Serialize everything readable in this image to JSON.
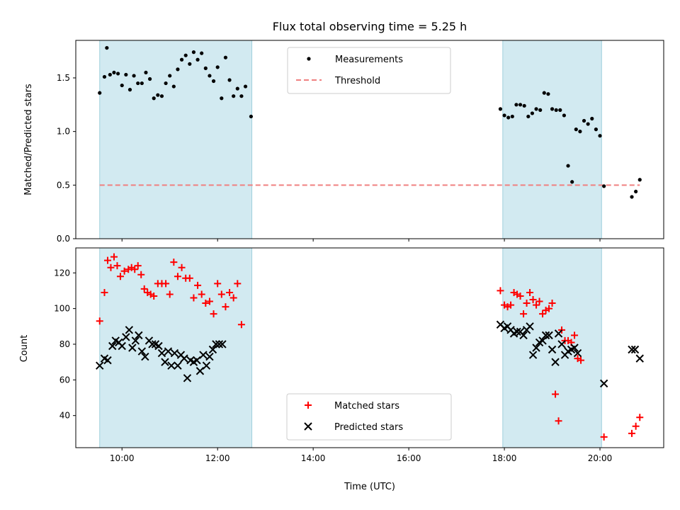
{
  "chart_data": {
    "title": "Flux total observing time = 5.25 h",
    "xlabel": "Time (UTC)",
    "x_ticks": [
      "10:00",
      "12:00",
      "14:00",
      "16:00",
      "18:00",
      "20:00"
    ],
    "x_range": [
      "09:02",
      "21:20"
    ],
    "shaded_intervals": [
      [
        "09:32",
        "12:43"
      ],
      [
        "17:58",
        "20:02"
      ]
    ],
    "shade_color": "#add8e6",
    "panels": [
      {
        "type": "scatter",
        "ylabel": "Matched/Predicted stars",
        "ylim": [
          0,
          1.85
        ],
        "y_ticks": [
          "0.0",
          "0.5",
          "1.0",
          "1.5"
        ],
        "legend_position": "top-center",
        "series": [
          {
            "name": "Measurements",
            "color": "#000000",
            "marker": "dot",
            "points": [
              [
                "09:32",
                1.36
              ],
              [
                "09:38",
                1.51
              ],
              [
                "09:41",
                1.78
              ],
              [
                "09:45",
                1.53
              ],
              [
                "09:50",
                1.55
              ],
              [
                "09:55",
                1.54
              ],
              [
                "10:00",
                1.43
              ],
              [
                "10:05",
                1.53
              ],
              [
                "10:10",
                1.39
              ],
              [
                "10:15",
                1.52
              ],
              [
                "10:20",
                1.45
              ],
              [
                "10:25",
                1.45
              ],
              [
                "10:30",
                1.55
              ],
              [
                "10:35",
                1.49
              ],
              [
                "10:40",
                1.31
              ],
              [
                "10:45",
                1.34
              ],
              [
                "10:50",
                1.33
              ],
              [
                "10:55",
                1.45
              ],
              [
                "11:00",
                1.52
              ],
              [
                "11:05",
                1.42
              ],
              [
                "11:10",
                1.58
              ],
              [
                "11:15",
                1.67
              ],
              [
                "11:20",
                1.71
              ],
              [
                "11:25",
                1.63
              ],
              [
                "11:30",
                1.74
              ],
              [
                "11:35",
                1.67
              ],
              [
                "11:40",
                1.73
              ],
              [
                "11:45",
                1.59
              ],
              [
                "11:50",
                1.52
              ],
              [
                "11:55",
                1.47
              ],
              [
                "12:00",
                1.6
              ],
              [
                "12:05",
                1.31
              ],
              [
                "12:10",
                1.69
              ],
              [
                "12:15",
                1.48
              ],
              [
                "12:20",
                1.33
              ],
              [
                "12:25",
                1.4
              ],
              [
                "12:30",
                1.33
              ],
              [
                "12:35",
                1.42
              ],
              [
                "12:42",
                1.14
              ],
              [
                "17:55",
                1.21
              ],
              [
                "18:00",
                1.15
              ],
              [
                "18:05",
                1.13
              ],
              [
                "18:10",
                1.14
              ],
              [
                "18:15",
                1.25
              ],
              [
                "18:20",
                1.25
              ],
              [
                "18:25",
                1.24
              ],
              [
                "18:30",
                1.14
              ],
              [
                "18:35",
                1.17
              ],
              [
                "18:40",
                1.21
              ],
              [
                "18:45",
                1.2
              ],
              [
                "18:50",
                1.36
              ],
              [
                "18:55",
                1.35
              ],
              [
                "19:00",
                1.21
              ],
              [
                "19:05",
                1.2
              ],
              [
                "19:10",
                1.2
              ],
              [
                "19:15",
                1.15
              ],
              [
                "19:20",
                0.68
              ],
              [
                "19:25",
                0.53
              ],
              [
                "19:30",
                1.02
              ],
              [
                "19:35",
                1.0
              ],
              [
                "19:40",
                1.1
              ],
              [
                "19:45",
                1.07
              ],
              [
                "19:50",
                1.12
              ],
              [
                "19:55",
                1.02
              ],
              [
                "20:00",
                0.96
              ],
              [
                "20:05",
                0.49
              ],
              [
                "20:40",
                0.39
              ],
              [
                "20:45",
                0.44
              ],
              [
                "20:50",
                0.55
              ]
            ]
          },
          {
            "name": "Threshold",
            "color": "#f08080",
            "style": "dashed",
            "points": [
              [
                "09:32",
                0.5
              ],
              [
                "20:50",
                0.5
              ]
            ]
          }
        ]
      },
      {
        "type": "scatter",
        "ylabel": "Count",
        "ylim": [
          22,
          134
        ],
        "y_ticks": [
          "40",
          "60",
          "80",
          "100",
          "120"
        ],
        "legend_position": "bottom-center",
        "series": [
          {
            "name": "Matched stars",
            "color": "#ff0000",
            "marker": "plus",
            "points": [
              [
                "09:32",
                93
              ],
              [
                "09:38",
                109
              ],
              [
                "09:42",
                127
              ],
              [
                "09:46",
                123
              ],
              [
                "09:50",
                129
              ],
              [
                "09:54",
                124
              ],
              [
                "09:58",
                118
              ],
              [
                "10:03",
                121
              ],
              [
                "10:08",
                122
              ],
              [
                "10:12",
                123
              ],
              [
                "10:16",
                122
              ],
              [
                "10:20",
                124
              ],
              [
                "10:24",
                119
              ],
              [
                "10:28",
                111
              ],
              [
                "10:32",
                109
              ],
              [
                "10:36",
                108
              ],
              [
                "10:40",
                107
              ],
              [
                "10:45",
                114
              ],
              [
                "10:50",
                114
              ],
              [
                "10:55",
                114
              ],
              [
                "11:00",
                108
              ],
              [
                "11:05",
                126
              ],
              [
                "11:10",
                118
              ],
              [
                "11:15",
                123
              ],
              [
                "11:20",
                117
              ],
              [
                "11:25",
                117
              ],
              [
                "11:30",
                106
              ],
              [
                "11:35",
                113
              ],
              [
                "11:40",
                108
              ],
              [
                "11:45",
                103
              ],
              [
                "11:50",
                104
              ],
              [
                "11:55",
                97
              ],
              [
                "12:00",
                114
              ],
              [
                "12:05",
                108
              ],
              [
                "12:10",
                101
              ],
              [
                "12:15",
                109
              ],
              [
                "12:20",
                106
              ],
              [
                "12:25",
                114
              ],
              [
                "12:30",
                91
              ],
              [
                "17:55",
                110
              ],
              [
                "18:00",
                102
              ],
              [
                "18:04",
                101
              ],
              [
                "18:08",
                102
              ],
              [
                "18:12",
                109
              ],
              [
                "18:16",
                108
              ],
              [
                "18:20",
                107
              ],
              [
                "18:24",
                97
              ],
              [
                "18:28",
                103
              ],
              [
                "18:32",
                109
              ],
              [
                "18:36",
                105
              ],
              [
                "18:40",
                102
              ],
              [
                "18:44",
                104
              ],
              [
                "18:48",
                97
              ],
              [
                "18:52",
                99
              ],
              [
                "18:56",
                100
              ],
              [
                "19:00",
                103
              ],
              [
                "19:04",
                52
              ],
              [
                "19:08",
                37
              ],
              [
                "19:12",
                88
              ],
              [
                "19:16",
                82
              ],
              [
                "19:20",
                82
              ],
              [
                "19:24",
                81
              ],
              [
                "19:28",
                85
              ],
              [
                "19:32",
                72
              ],
              [
                "19:36",
                71
              ],
              [
                "20:05",
                28
              ],
              [
                "20:40",
                30
              ],
              [
                "20:45",
                34
              ],
              [
                "20:50",
                39
              ]
            ]
          },
          {
            "name": "Predicted stars",
            "color": "#000000",
            "marker": "x",
            "points": [
              [
                "09:32",
                68
              ],
              [
                "09:38",
                72
              ],
              [
                "09:42",
                71
              ],
              [
                "09:48",
                79
              ],
              [
                "09:52",
                82
              ],
              [
                "09:56",
                81
              ],
              [
                "10:00",
                79
              ],
              [
                "10:05",
                84
              ],
              [
                "10:09",
                88
              ],
              [
                "10:13",
                78
              ],
              [
                "10:17",
                82
              ],
              [
                "10:21",
                85
              ],
              [
                "10:25",
                76
              ],
              [
                "10:29",
                73
              ],
              [
                "10:34",
                82
              ],
              [
                "10:38",
                80
              ],
              [
                "10:42",
                80
              ],
              [
                "10:46",
                79
              ],
              [
                "10:50",
                75
              ],
              [
                "10:54",
                70
              ],
              [
                "10:58",
                76
              ],
              [
                "11:02",
                68
              ],
              [
                "11:06",
                75
              ],
              [
                "11:10",
                68
              ],
              [
                "11:14",
                74
              ],
              [
                "11:18",
                72
              ],
              [
                "11:22",
                61
              ],
              [
                "11:26",
                71
              ],
              [
                "11:30",
                70
              ],
              [
                "11:34",
                71
              ],
              [
                "11:38",
                65
              ],
              [
                "11:42",
                74
              ],
              [
                "11:46",
                68
              ],
              [
                "11:50",
                73
              ],
              [
                "11:54",
                77
              ],
              [
                "11:58",
                80
              ],
              [
                "12:02",
                80
              ],
              [
                "12:06",
                80
              ],
              [
                "17:55",
                91
              ],
              [
                "18:00",
                89
              ],
              [
                "18:04",
                90
              ],
              [
                "18:08",
                88
              ],
              [
                "18:12",
                86
              ],
              [
                "18:16",
                87
              ],
              [
                "18:20",
                87
              ],
              [
                "18:24",
                85
              ],
              [
                "18:28",
                88
              ],
              [
                "18:32",
                90
              ],
              [
                "18:36",
                74
              ],
              [
                "18:40",
                78
              ],
              [
                "18:44",
                81
              ],
              [
                "18:48",
                82
              ],
              [
                "18:52",
                85
              ],
              [
                "18:56",
                85
              ],
              [
                "19:00",
                77
              ],
              [
                "19:04",
                70
              ],
              [
                "19:08",
                86
              ],
              [
                "19:12",
                80
              ],
              [
                "19:16",
                74
              ],
              [
                "19:20",
                76
              ],
              [
                "19:24",
                77
              ],
              [
                "19:28",
                78
              ],
              [
                "19:32",
                75
              ],
              [
                "20:05",
                58
              ],
              [
                "20:40",
                77
              ],
              [
                "20:44",
                77
              ],
              [
                "20:50",
                72
              ]
            ]
          }
        ]
      }
    ]
  }
}
